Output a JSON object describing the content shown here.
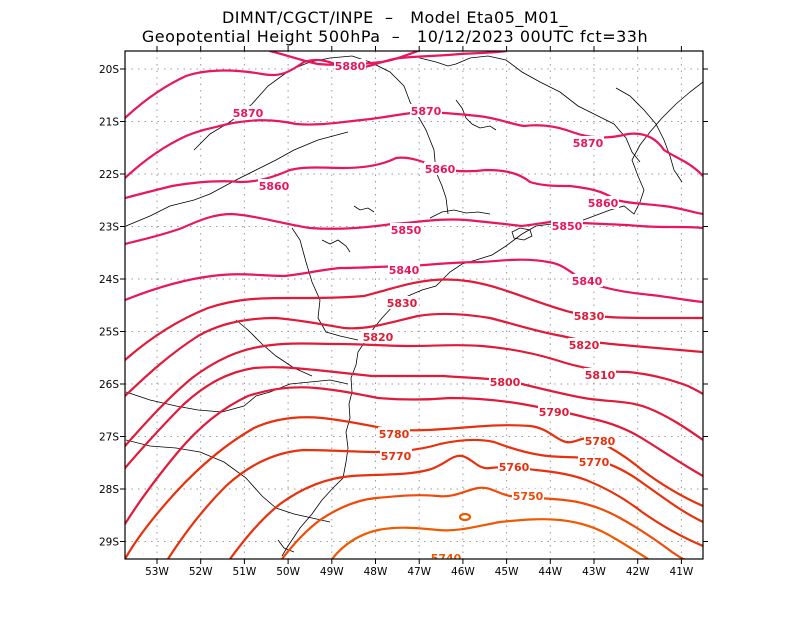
{
  "header": {
    "line1": "DIMNT/CGCT/INPE  –   Model Eta05_M01_",
    "line2": "Geopotential Height 500hPa  –   10/12/2023 00UTC fct=33h"
  },
  "axes": {
    "lat_labels": [
      "20S",
      "21S",
      "22S",
      "23S",
      "24S",
      "25S",
      "26S",
      "27S",
      "28S",
      "29S"
    ],
    "lon_labels": [
      "53W",
      "52W",
      "51W",
      "50W",
      "49W",
      "48W",
      "47W",
      "46W",
      "45W",
      "44W",
      "43W",
      "42W",
      "41W"
    ]
  },
  "contours": [
    {
      "value": 5880,
      "label": "5880",
      "color": "#e8175d"
    },
    {
      "value": 5870,
      "label": "5870",
      "color": "#e8175d"
    },
    {
      "value": 5860,
      "label": "5860",
      "color": "#e8175d"
    },
    {
      "value": 5850,
      "label": "5850",
      "color": "#e8175d"
    },
    {
      "value": 5840,
      "label": "5840",
      "color": "#e8175d"
    },
    {
      "value": 5830,
      "label": "5830",
      "color": "#e01a38"
    },
    {
      "value": 5820,
      "label": "5820",
      "color": "#e01a38"
    },
    {
      "value": 5810,
      "label": "5810",
      "color": "#e01a38"
    },
    {
      "value": 5800,
      "label": "5800",
      "color": "#e01a38"
    },
    {
      "value": 5790,
      "label": "5790",
      "color": "#e01a38"
    },
    {
      "value": 5780,
      "label": "5780",
      "color": "#e8300c"
    },
    {
      "value": 5770,
      "label": "5770",
      "color": "#e8300c"
    },
    {
      "value": 5760,
      "label": "5760",
      "color": "#e8300c"
    },
    {
      "value": 5750,
      "label": "5750",
      "color": "#ef4a0a"
    },
    {
      "value": 5740,
      "label": "5740",
      "color": "#ef5a00"
    }
  ],
  "colors": {
    "frame": "#000000",
    "grid": "#9a9a9a",
    "coast": "#000000"
  }
}
